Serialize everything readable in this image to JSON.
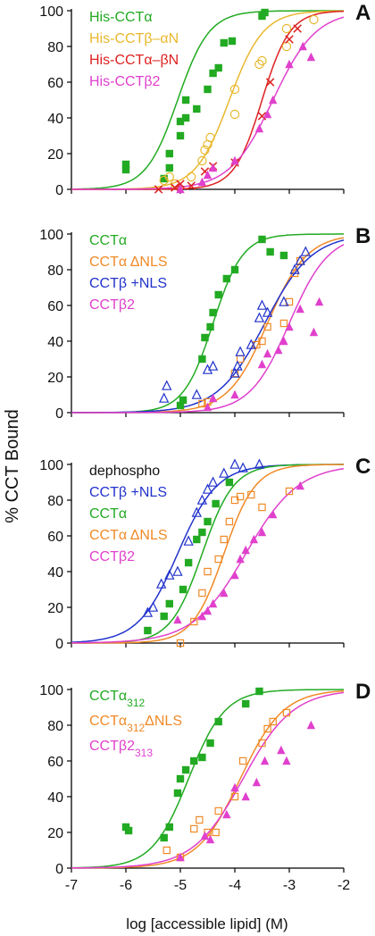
{
  "ylabel": "% CCT Bound",
  "xlabel": "log [accessible lipid] (M)",
  "x_ticks": [
    "-7",
    "-6",
    "-5",
    "-4",
    "-3",
    "-2"
  ],
  "y_ticks": [
    "0",
    "20",
    "40",
    "60",
    "80",
    "100"
  ],
  "chart_data": [
    {
      "type": "scatter",
      "panel": "A",
      "xlim": [
        -7,
        -2
      ],
      "ylim": [
        0,
        100
      ],
      "legend_lines": [
        {
          "text": "His-CCTα",
          "color": "#22aa22"
        },
        {
          "text": "His-CCTβ–αN",
          "color": "#e8b830"
        },
        {
          "text": "His-CCTα–βN",
          "color": "#dd2222"
        },
        {
          "text": "His-CCTβ2",
          "color": "#e040cc"
        }
      ],
      "series": [
        {
          "name": "His-CCTα",
          "color": "#22aa22",
          "marker": "square",
          "ec50": -5.05,
          "slope": 1.5,
          "points": [
            [
              -6,
              14
            ],
            [
              -6,
              11
            ],
            [
              -5.3,
              6
            ],
            [
              -5.2,
              12
            ],
            [
              -5.2,
              20
            ],
            [
              -5.0,
              30
            ],
            [
              -5.0,
              38
            ],
            [
              -4.9,
              50
            ],
            [
              -4.9,
              40
            ],
            [
              -4.7,
              45
            ],
            [
              -4.5,
              56
            ],
            [
              -4.4,
              65
            ],
            [
              -4.3,
              68
            ],
            [
              -4.2,
              82
            ],
            [
              -4.05,
              83
            ],
            [
              -3.5,
              97
            ],
            [
              -3.45,
              99
            ]
          ]
        },
        {
          "name": "His-CCTβ–αN",
          "color": "#e8b830",
          "marker": "circle-open",
          "ec50": -4.1,
          "slope": 1.4,
          "points": [
            [
              -5.3,
              5
            ],
            [
              -5.2,
              7
            ],
            [
              -5.1,
              3
            ],
            [
              -4.8,
              7
            ],
            [
              -4.6,
              16
            ],
            [
              -4.55,
              22
            ],
            [
              -4.5,
              25
            ],
            [
              -4.45,
              29
            ],
            [
              -4.0,
              42
            ],
            [
              -4.0,
              56
            ],
            [
              -3.55,
              70
            ],
            [
              -3.5,
              72
            ],
            [
              -3.05,
              90
            ],
            [
              -3.05,
              80
            ],
            [
              -2.55,
              95
            ]
          ]
        },
        {
          "name": "His-CCTα–βN",
          "color": "#dd2222",
          "marker": "x",
          "ec50": -3.5,
          "slope": 1.7,
          "points": [
            [
              -5.4,
              0
            ],
            [
              -5.1,
              1
            ],
            [
              -5.0,
              3
            ],
            [
              -4.8,
              2
            ],
            [
              -4.55,
              10
            ],
            [
              -4.4,
              13
            ],
            [
              -4.0,
              15
            ],
            [
              -3.5,
              41
            ],
            [
              -3.35,
              60
            ],
            [
              -3.0,
              84
            ],
            [
              -2.85,
              90
            ]
          ]
        },
        {
          "name": "His-CCTβ2",
          "color": "#e040cc",
          "marker": "triangle",
          "ec50": -3.3,
          "slope": 1.1,
          "points": [
            [
              -5.0,
              0
            ],
            [
              -4.6,
              4
            ],
            [
              -4.5,
              8
            ],
            [
              -4.4,
              12
            ],
            [
              -4.0,
              16
            ],
            [
              -3.55,
              34
            ],
            [
              -3.4,
              42
            ],
            [
              -3.3,
              50
            ],
            [
              -3.0,
              70
            ],
            [
              -2.75,
              80
            ],
            [
              -2.6,
              74
            ]
          ]
        }
      ]
    },
    {
      "type": "scatter",
      "panel": "B",
      "xlim": [
        -7,
        -2
      ],
      "ylim": [
        0,
        100
      ],
      "legend_lines": [
        {
          "text": "CCTα",
          "color": "#22aa22"
        },
        {
          "text": "CCTα ΔNLS",
          "color": "#f08a28"
        },
        {
          "text": "CCTβ +NLS",
          "color": "#2233cc"
        },
        {
          "text": "CCTβ2",
          "color": "#e040cc"
        }
      ],
      "series": [
        {
          "name": "CCTα",
          "color": "#22aa22",
          "marker": "square",
          "ec50": -4.4,
          "slope": 1.6,
          "points": [
            [
              -5.0,
              4
            ],
            [
              -4.95,
              7
            ],
            [
              -4.6,
              30
            ],
            [
              -4.55,
              42
            ],
            [
              -4.45,
              48
            ],
            [
              -4.4,
              56
            ],
            [
              -4.3,
              66
            ],
            [
              -4.15,
              75
            ],
            [
              -4.0,
              80
            ],
            [
              -3.5,
              97
            ],
            [
              -3.35,
              90
            ],
            [
              -3.1,
              88
            ]
          ]
        },
        {
          "name": "CCTα ΔNLS",
          "color": "#f08a28",
          "marker": "square-open",
          "ec50": -3.4,
          "slope": 1.2,
          "points": [
            [
              -4.6,
              5
            ],
            [
              -4.5,
              6
            ],
            [
              -4.0,
              22
            ],
            [
              -3.9,
              30
            ],
            [
              -3.6,
              38
            ],
            [
              -3.5,
              40
            ],
            [
              -3.4,
              48
            ],
            [
              -3.1,
              50
            ],
            [
              -3.0,
              62
            ],
            [
              -2.9,
              78
            ],
            [
              -2.8,
              85
            ]
          ]
        },
        {
          "name": "CCTβ +NLS",
          "color": "#2233cc",
          "marker": "triangle-open",
          "ec50": -3.45,
          "slope": 1.0,
          "points": [
            [
              -5.3,
              8
            ],
            [
              -5.25,
              15
            ],
            [
              -4.7,
              10
            ],
            [
              -4.5,
              24
            ],
            [
              -4.4,
              26
            ],
            [
              -4.0,
              22
            ],
            [
              -3.95,
              26
            ],
            [
              -3.9,
              34
            ],
            [
              -3.7,
              38
            ],
            [
              -3.55,
              53
            ],
            [
              -3.5,
              60
            ],
            [
              -3.4,
              56
            ],
            [
              -3.1,
              62
            ],
            [
              -2.9,
              80
            ],
            [
              -2.8,
              85
            ],
            [
              -2.7,
              90
            ]
          ]
        },
        {
          "name": "CCTβ2",
          "color": "#e040cc",
          "marker": "triangle",
          "ec50": -3.0,
          "slope": 1.2,
          "points": [
            [
              -4.5,
              3
            ],
            [
              -4.4,
              8
            ],
            [
              -4.0,
              10
            ],
            [
              -3.5,
              27
            ],
            [
              -3.4,
              33
            ],
            [
              -3.2,
              35
            ],
            [
              -3.1,
              40
            ],
            [
              -3.0,
              48
            ],
            [
              -2.8,
              58
            ],
            [
              -2.55,
              45
            ],
            [
              -2.45,
              62
            ]
          ]
        }
      ]
    },
    {
      "type": "scatter",
      "panel": "C",
      "xlim": [
        -7,
        -2
      ],
      "ylim": [
        0,
        100
      ],
      "legend_lines": [
        {
          "text": "dephospho",
          "color": "#111111"
        },
        {
          "text": "CCTβ +NLS",
          "color": "#2233cc"
        },
        {
          "text": "CCTα",
          "color": "#22aa22"
        },
        {
          "text": "CCTα ΔNLS",
          "color": "#f08a28"
        },
        {
          "text": "CCTβ2",
          "color": "#e040cc"
        }
      ],
      "series": [
        {
          "name": "CCTβ +NLS",
          "color": "#2233cc",
          "marker": "triangle-open",
          "ec50": -5.05,
          "slope": 1.2,
          "points": [
            [
              -5.6,
              17
            ],
            [
              -5.5,
              20
            ],
            [
              -5.35,
              33
            ],
            [
              -5.2,
              38
            ],
            [
              -5.05,
              40
            ],
            [
              -4.85,
              57
            ],
            [
              -4.7,
              73
            ],
            [
              -4.6,
              80
            ],
            [
              -4.5,
              86
            ],
            [
              -4.4,
              90
            ],
            [
              -4.2,
              95
            ],
            [
              -4.0,
              100
            ],
            [
              -3.85,
              98
            ],
            [
              -3.55,
              100
            ]
          ]
        },
        {
          "name": "CCTα",
          "color": "#22aa22",
          "marker": "square",
          "ec50": -4.6,
          "slope": 1.5,
          "points": [
            [
              -5.6,
              7
            ],
            [
              -5.3,
              15
            ],
            [
              -5.2,
              22
            ],
            [
              -4.95,
              30
            ],
            [
              -4.85,
              45
            ],
            [
              -4.7,
              58
            ],
            [
              -4.6,
              62
            ],
            [
              -4.5,
              68
            ],
            [
              -4.35,
              78
            ],
            [
              -4.1,
              90
            ]
          ]
        },
        {
          "name": "CCTα ΔNLS",
          "color": "#f08a28",
          "marker": "square-open",
          "ec50": -4.2,
          "slope": 1.5,
          "points": [
            [
              -5.0,
              0
            ],
            [
              -4.75,
              12
            ],
            [
              -4.6,
              28
            ],
            [
              -4.5,
              40
            ],
            [
              -4.3,
              47
            ],
            [
              -4.2,
              58
            ],
            [
              -4.1,
              68
            ],
            [
              -4.0,
              80
            ],
            [
              -3.9,
              82
            ],
            [
              -3.7,
              83
            ],
            [
              -3.5,
              76
            ],
            [
              -3.0,
              85
            ]
          ]
        },
        {
          "name": "CCTβ2",
          "color": "#e040cc",
          "marker": "triangle",
          "ec50": -3.8,
          "slope": 0.9,
          "points": [
            [
              -5.05,
              13
            ],
            [
              -4.6,
              15
            ],
            [
              -4.5,
              18
            ],
            [
              -4.4,
              22
            ],
            [
              -4.2,
              28
            ],
            [
              -4.0,
              38
            ],
            [
              -3.9,
              47
            ],
            [
              -3.8,
              52
            ],
            [
              -3.65,
              58
            ],
            [
              -3.5,
              62
            ],
            [
              -3.3,
              72
            ],
            [
              -2.8,
              88
            ]
          ]
        }
      ]
    },
    {
      "type": "scatter",
      "panel": "D",
      "xlim": [
        -7,
        -2
      ],
      "ylim": [
        0,
        100
      ],
      "legend_lines": [
        {
          "text": "CCTα",
          "sub": "312",
          "color": "#22aa22"
        },
        {
          "text": "CCTα",
          "sub": "312",
          "tail": "ΔNLS",
          "color": "#f08a28"
        },
        {
          "text": "CCTβ2",
          "sub": "313",
          "color": "#e040cc"
        }
      ],
      "series": [
        {
          "name": "CCTα312",
          "color": "#22aa22",
          "marker": "square",
          "ec50": -4.85,
          "slope": 1.3,
          "points": [
            [
              -6.0,
              23
            ],
            [
              -5.95,
              21
            ],
            [
              -5.3,
              17
            ],
            [
              -5.2,
              23
            ],
            [
              -5.05,
              42
            ],
            [
              -5.0,
              50
            ],
            [
              -4.9,
              55
            ],
            [
              -4.75,
              60
            ],
            [
              -4.6,
              62
            ],
            [
              -4.45,
              70
            ],
            [
              -4.3,
              82
            ],
            [
              -3.8,
              92
            ],
            [
              -3.55,
              99
            ]
          ]
        },
        {
          "name": "CCTα312ΔNLS",
          "color": "#f08a28",
          "marker": "square-open",
          "ec50": -3.9,
          "slope": 1.1,
          "points": [
            [
              -5.25,
              10
            ],
            [
              -5.0,
              6
            ],
            [
              -4.75,
              22
            ],
            [
              -4.65,
              27
            ],
            [
              -4.5,
              20
            ],
            [
              -4.35,
              20
            ],
            [
              -4.3,
              32
            ],
            [
              -4.0,
              40
            ],
            [
              -3.85,
              60
            ],
            [
              -3.5,
              70
            ],
            [
              -3.4,
              78
            ],
            [
              -3.3,
              82
            ],
            [
              -3.05,
              87
            ]
          ]
        },
        {
          "name": "CCTβ2313",
          "color": "#e040cc",
          "marker": "triangle",
          "ec50": -3.85,
          "slope": 0.95,
          "points": [
            [
              -5.0,
              6
            ],
            [
              -4.55,
              18
            ],
            [
              -4.45,
              16
            ],
            [
              -4.15,
              30
            ],
            [
              -4.0,
              45
            ],
            [
              -3.8,
              40
            ],
            [
              -3.6,
              48
            ],
            [
              -3.45,
              60
            ],
            [
              -3.15,
              66
            ],
            [
              -3.05,
              60
            ],
            [
              -2.6,
              80
            ]
          ]
        }
      ]
    }
  ]
}
